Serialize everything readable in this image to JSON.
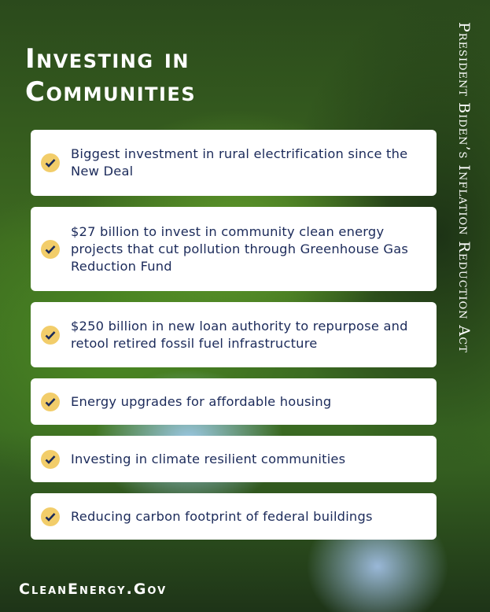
{
  "title_lines": [
    "Investing in",
    "Communities"
  ],
  "side_text": "President Biden’s Inflation Reduction Act",
  "items": [
    "Biggest investment in rural electrification since the New Deal",
    "$27 billion to invest in community clean energy projects that cut pollution through Greenhouse Gas Reduction Fund",
    "$250 billion in new loan authority to repurpose and retool retired fossil fuel infrastructure",
    "Energy upgrades for affordable housing",
    "Investing in climate resilient communities",
    "Reducing carbon footprint of federal buildings"
  ],
  "footer": "CleanEnergy.Gov",
  "colors": {
    "check": "#f2cd6a",
    "text": "#1b2a5a"
  }
}
